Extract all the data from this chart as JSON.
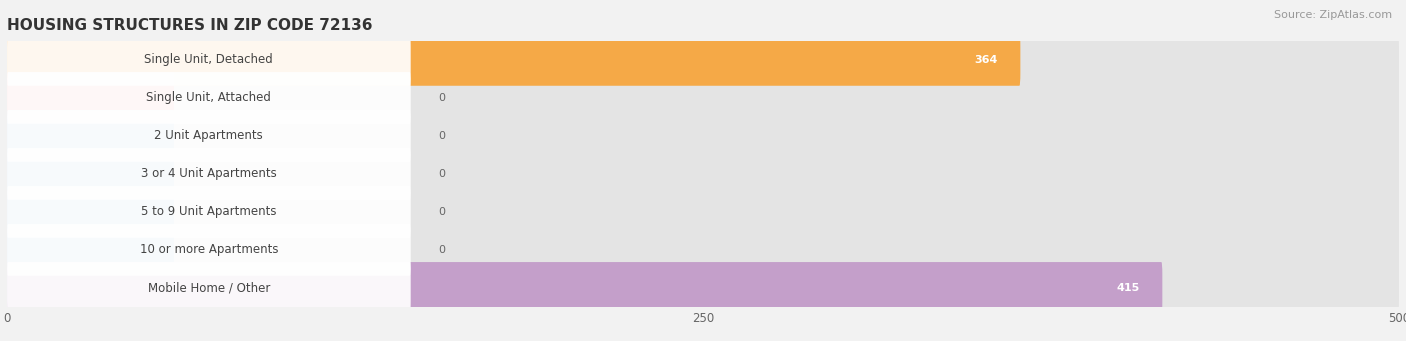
{
  "title": "HOUSING STRUCTURES IN ZIP CODE 72136",
  "source": "Source: ZipAtlas.com",
  "categories": [
    "Single Unit, Detached",
    "Single Unit, Attached",
    "2 Unit Apartments",
    "3 or 4 Unit Apartments",
    "5 to 9 Unit Apartments",
    "10 or more Apartments",
    "Mobile Home / Other"
  ],
  "values": [
    364,
    0,
    0,
    0,
    0,
    0,
    415
  ],
  "bar_colors": [
    "#F5A947",
    "#F4A0A0",
    "#A8C4E0",
    "#A8C4E0",
    "#A8C4E0",
    "#A8C4E0",
    "#C49FCA"
  ],
  "xlim": [
    0,
    500
  ],
  "xticks": [
    0,
    250,
    500
  ],
  "background_color": "#f2f2f2",
  "bar_bg_color": "#e4e4e4",
  "row_bg_colors": [
    "#ffffff",
    "#f5f5f5"
  ],
  "title_fontsize": 11,
  "source_fontsize": 8,
  "label_fontsize": 8.5,
  "value_fontsize": 8
}
